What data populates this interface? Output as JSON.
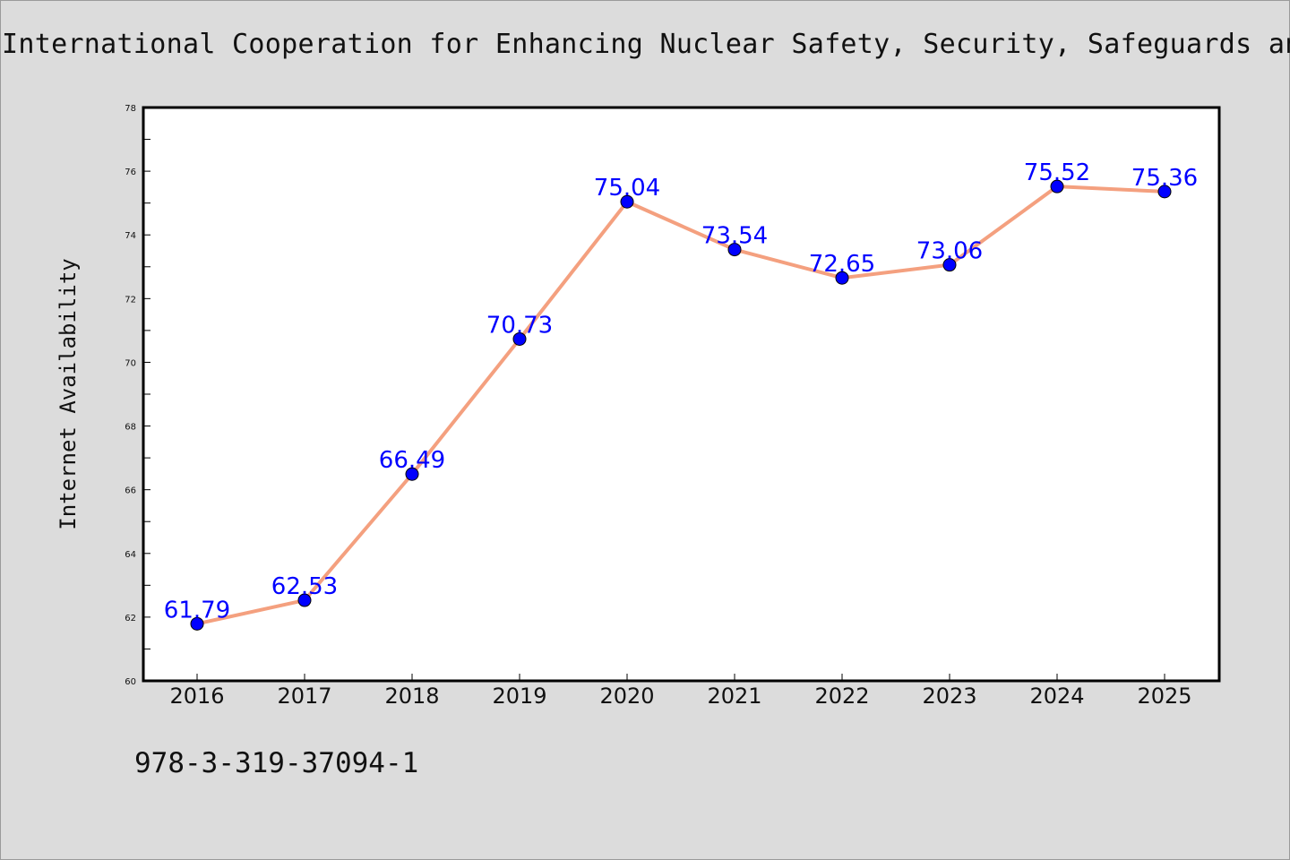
{
  "title": "International Cooperation for Enhancing Nuclear Safety, Security, Safeguards and",
  "footnote": "978-3-319-37094-1",
  "colors": {
    "background": "#dcdcdc",
    "plot_background": "#ffffff",
    "line": "#f4a07f",
    "marker": "#0000ff",
    "data_label": "#0000ff"
  },
  "chart_data": {
    "type": "line",
    "title": "International Cooperation for Enhancing Nuclear Safety, Security, Safeguards and",
    "xlabel": "",
    "ylabel": "Internet Availability",
    "categories": [
      "2016",
      "2017",
      "2018",
      "2019",
      "2020",
      "2021",
      "2022",
      "2023",
      "2024",
      "2025"
    ],
    "values": [
      61.79,
      62.53,
      66.49,
      70.73,
      75.04,
      73.54,
      72.65,
      73.06,
      75.52,
      75.36
    ],
    "data_labels": [
      "61.79",
      "62.53",
      "66.49",
      "70.73",
      "75.04",
      "73.54",
      "72.65",
      "73.06",
      "75.52",
      "75.36"
    ],
    "ylim": [
      60,
      78
    ],
    "yticks": [
      "60",
      "62",
      "64",
      "66",
      "68",
      "70",
      "72",
      "74",
      "76",
      "78"
    ],
    "grid": false,
    "legend": "none"
  }
}
